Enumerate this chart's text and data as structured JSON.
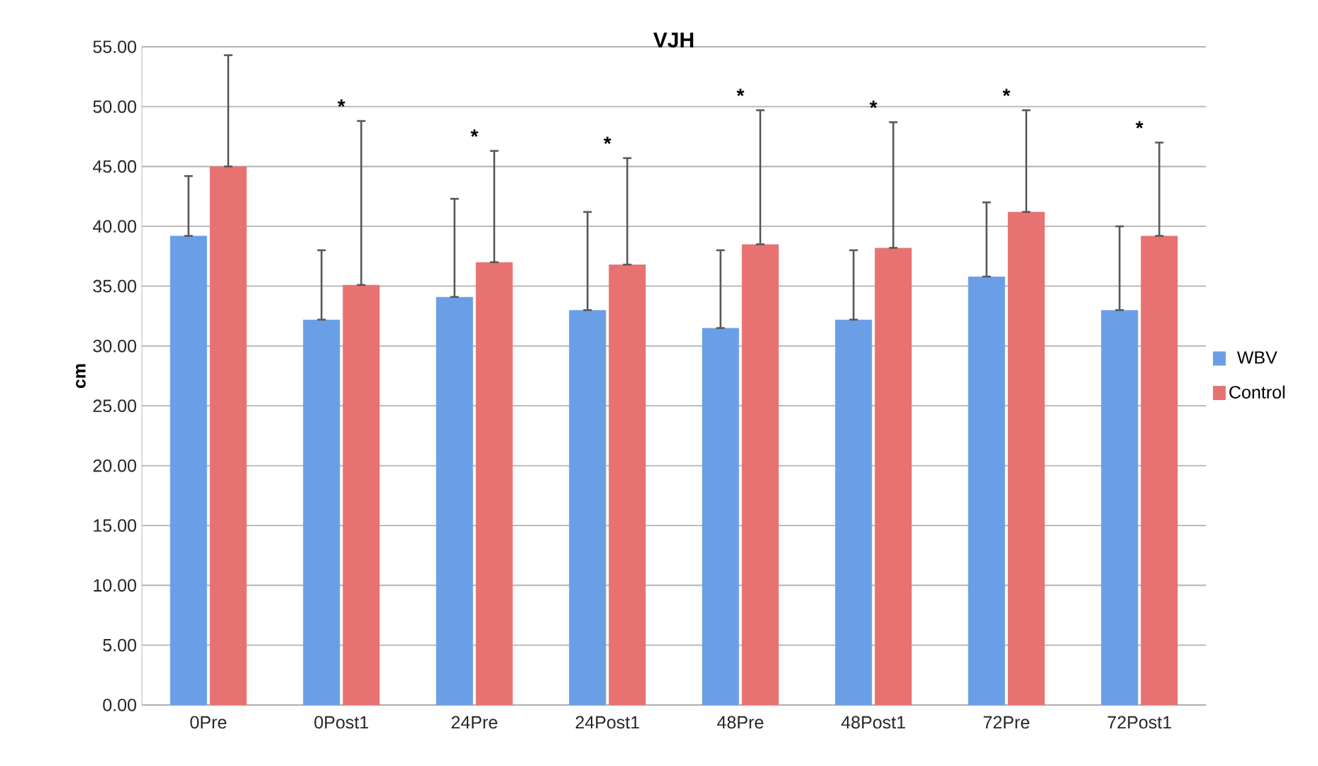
{
  "chart_data": {
    "type": "bar",
    "title": "VJH",
    "ylabel": "cm",
    "categories": [
      "0Pre",
      "0Post1",
      "24Pre",
      "24Post1",
      "48Pre",
      "48Post1",
      "72Pre",
      "72Post1"
    ],
    "series": [
      {
        "name": "WBV",
        "color": "#6a9fe8",
        "values": [
          39.2,
          32.2,
          34.1,
          33.0,
          31.5,
          32.2,
          35.8,
          33.0
        ],
        "errors": [
          [
            39.2,
            44.2
          ],
          [
            32.2,
            38.0
          ],
          [
            34.1,
            42.3
          ],
          [
            33.0,
            41.2
          ],
          [
            31.5,
            38.0
          ],
          [
            32.2,
            38.0
          ],
          [
            35.8,
            42.0
          ],
          [
            33.0,
            40.0
          ]
        ]
      },
      {
        "name": "Control",
        "color": "#e87272",
        "values": [
          45.0,
          35.1,
          37.0,
          36.8,
          38.5,
          38.2,
          41.2,
          39.2
        ],
        "errors": [
          [
            45.0,
            54.3
          ],
          [
            35.1,
            48.8
          ],
          [
            37.0,
            46.3
          ],
          [
            36.8,
            45.7
          ],
          [
            38.5,
            49.7
          ],
          [
            38.2,
            48.7
          ],
          [
            41.2,
            49.7
          ],
          [
            39.2,
            47.0
          ]
        ]
      }
    ],
    "ylim": [
      0,
      55
    ],
    "yticks": [
      {
        "value": 0,
        "label": "0.00"
      },
      {
        "value": 5,
        "label": "5.00"
      },
      {
        "value": 10,
        "label": "10.00"
      },
      {
        "value": 15,
        "label": "15.00"
      },
      {
        "value": 20,
        "label": "20.00"
      },
      {
        "value": 25,
        "label": "25.00"
      },
      {
        "value": 30,
        "label": "30.00"
      },
      {
        "value": 35,
        "label": "35.00"
      },
      {
        "value": 40,
        "label": "40.00"
      },
      {
        "value": 45,
        "label": "45.00"
      },
      {
        "value": 50,
        "label": "50.00"
      },
      {
        "value": 55,
        "label": "55.00"
      }
    ],
    "grid": "y",
    "legend": "right",
    "annotations": [
      "*",
      "*",
      "*",
      "*",
      "*",
      "*",
      "*"
    ]
  }
}
